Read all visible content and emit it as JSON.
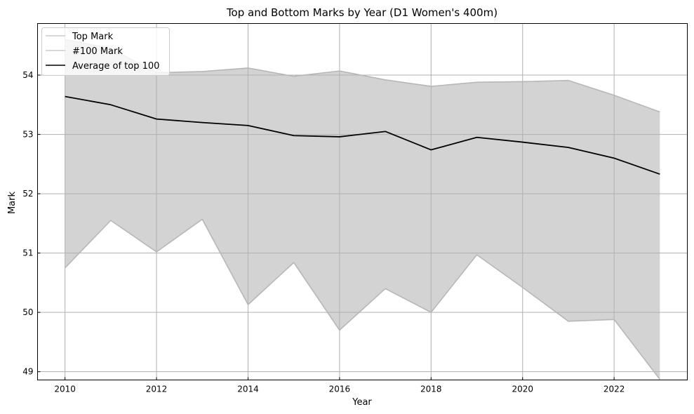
{
  "chart_data": {
    "type": "area",
    "title": "Top and Bottom Marks by Year (D1 Women's 400m)",
    "xlabel": "Year",
    "ylabel": "Mark",
    "xlim": [
      2009.4,
      2023.6
    ],
    "ylim": [
      54.87,
      48.86
    ],
    "y_inverted": true,
    "grid": true,
    "legend_position": "top-left",
    "x_ticks": [
      2010,
      2012,
      2014,
      2016,
      2018,
      2020,
      2022
    ],
    "x_tick_labels": [
      "2010",
      "2012",
      "2014",
      "2016",
      "2018",
      "2020",
      "2022"
    ],
    "y_ticks": [
      49,
      50,
      51,
      52,
      53,
      54
    ],
    "y_tick_labels": [
      "49",
      "50",
      "51",
      "52",
      "53",
      "54"
    ],
    "x": [
      2010,
      2011,
      2012,
      2013,
      2014,
      2015,
      2016,
      2017,
      2018,
      2019,
      2020,
      2021,
      2022,
      2023
    ],
    "series": [
      {
        "name": "Top Mark",
        "color": "#b7b7b7",
        "values": [
          50.75,
          51.55,
          51.02,
          51.57,
          50.13,
          50.84,
          49.7,
          50.4,
          50.0,
          50.97,
          50.42,
          49.85,
          49.88,
          48.87
        ]
      },
      {
        "name": "#100 Mark",
        "color": "#b7b7b7",
        "values": [
          54.6,
          54.45,
          54.04,
          54.06,
          54.12,
          53.98,
          54.07,
          53.92,
          53.81,
          53.88,
          53.89,
          53.91,
          53.66,
          53.38
        ]
      },
      {
        "name": "Average of top 100",
        "color": "#000000",
        "values": [
          53.64,
          53.5,
          53.26,
          53.2,
          53.15,
          52.98,
          52.96,
          53.05,
          52.74,
          52.95,
          52.87,
          52.78,
          52.6,
          52.33
        ]
      }
    ],
    "fill_color": "#d3d3d3"
  }
}
